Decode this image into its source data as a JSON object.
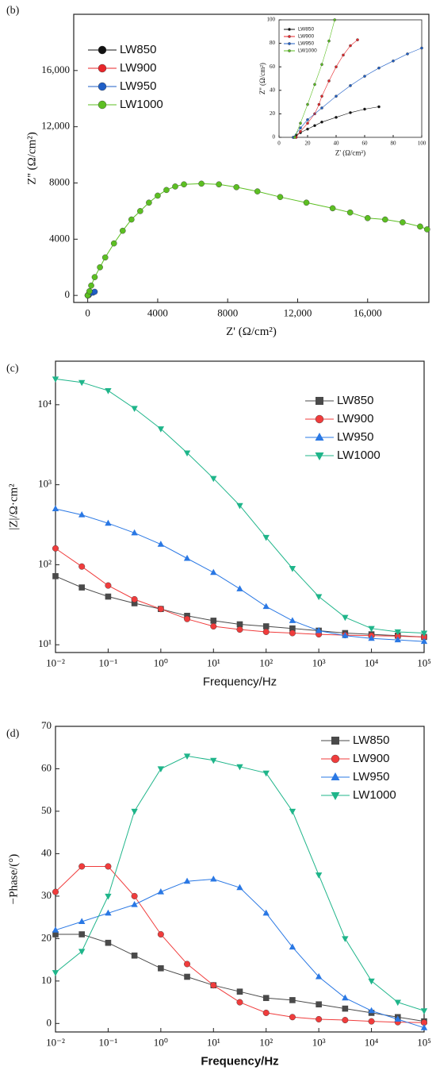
{
  "chart_data": [
    {
      "type": "line",
      "panel": "(b)",
      "xlabel": "Z' (Ω/cm²)",
      "ylabel": "Z'' (Ω/cm²)",
      "xscale": "linear",
      "legend": "upper left",
      "xlim": [
        -800,
        19500
      ],
      "ylim": [
        -500,
        20000
      ],
      "xticks": [
        0,
        4000,
        8000,
        {
          "value": 12000,
          "label": "12,000"
        },
        {
          "value": 16000,
          "label": "16,000"
        }
      ],
      "yticks": [
        0,
        4000,
        8000,
        {
          "value": 12000,
          "label": "12,000"
        },
        {
          "value": 16000,
          "label": "16,000"
        }
      ],
      "series": [
        {
          "name": "LW850",
          "color": "#111111",
          "marker": "circle",
          "x": [
            0,
            30,
            60
          ],
          "values": [
            0,
            10,
            25
          ]
        },
        {
          "name": "LW900",
          "color": "#e8262a",
          "marker": "circle",
          "x": [
            0,
            30,
            55
          ],
          "values": [
            0,
            40,
            85
          ]
        },
        {
          "name": "LW950",
          "color": "#1f5fc7",
          "marker": "circle",
          "x": [
            0,
            100,
            300,
            400
          ],
          "values": [
            0,
            100,
            200,
            260
          ]
        },
        {
          "name": "LW1000",
          "color": "#5cbf22",
          "marker": "circle",
          "x": [
            0,
            100,
            200,
            400,
            700,
            1000,
            1500,
            2000,
            2500,
            3000,
            3500,
            4000,
            4500,
            5000,
            5500,
            6500,
            7500,
            8500,
            9700,
            11000,
            12500,
            14000,
            15000,
            16000,
            17000,
            18000,
            19000,
            19400
          ],
          "values": [
            0,
            300,
            700,
            1300,
            2000,
            2700,
            3700,
            4600,
            5400,
            6000,
            6600,
            7100,
            7500,
            7750,
            7900,
            7950,
            7900,
            7700,
            7400,
            7000,
            6600,
            6200,
            5900,
            5500,
            5400,
            5200,
            4900,
            4700
          ]
        }
      ]
    },
    {
      "type": "line",
      "xlabel": "Z' (Ω/cm²)",
      "ylabel": "Z'' (Ω/cm²)",
      "xscale": "linear",
      "legend": "upper left",
      "xlim": [
        0,
        100
      ],
      "ylim": [
        0,
        100
      ],
      "xticks": [
        0,
        20,
        40,
        60,
        80,
        100
      ],
      "yticks": [
        0,
        20,
        40,
        60,
        80,
        100
      ],
      "series": [
        {
          "name": "LW850",
          "color": "#111111",
          "marker": "circle",
          "x": [
            10,
            12,
            15,
            20,
            25,
            30,
            40,
            50,
            60,
            70
          ],
          "values": [
            0,
            2,
            4,
            7,
            10,
            13,
            17,
            21,
            24,
            26
          ]
        },
        {
          "name": "LW900",
          "color": "#e8262a",
          "marker": "circle",
          "x": [
            12,
            15,
            20,
            25,
            28,
            30,
            35,
            40,
            45,
            50,
            55
          ],
          "values": [
            0,
            5,
            12,
            20,
            28,
            35,
            48,
            60,
            70,
            78,
            83
          ]
        },
        {
          "name": "LW950",
          "color": "#1f5fc7",
          "marker": "circle",
          "x": [
            10,
            15,
            20,
            30,
            40,
            50,
            60,
            70,
            80,
            90,
            100
          ],
          "values": [
            0,
            8,
            15,
            25,
            35,
            44,
            52,
            59,
            65,
            71,
            76
          ]
        },
        {
          "name": "LW1000",
          "color": "#5cbf22",
          "marker": "circle",
          "x": [
            11,
            15,
            20,
            25,
            30,
            35,
            39
          ],
          "values": [
            0,
            12,
            28,
            45,
            62,
            82,
            100
          ]
        }
      ]
    },
    {
      "type": "line",
      "panel": "(c)",
      "xlabel": "Frequency/Hz",
      "ylabel": "|Z|/Ω·cm²",
      "xscale": "log",
      "yscale": "log",
      "legend": "upper right",
      "xlim": [
        0.01,
        100000
      ],
      "ylim": [
        8,
        35000
      ],
      "xticks": [
        {
          "value": 0.01,
          "label": "10⁻²"
        },
        {
          "value": 0.1,
          "label": "10⁻¹"
        },
        {
          "value": 1,
          "label": "10⁰"
        },
        {
          "value": 10,
          "label": "10¹"
        },
        {
          "value": 100,
          "label": "10²"
        },
        {
          "value": 1000,
          "label": "10³"
        },
        {
          "value": 10000,
          "label": "10⁴"
        },
        {
          "value": 100000,
          "label": "10⁵"
        }
      ],
      "yticks": [
        {
          "value": 10,
          "label": "10¹"
        },
        {
          "value": 100,
          "label": "10²"
        },
        {
          "value": 1000,
          "label": "10³"
        },
        {
          "value": 10000,
          "label": "10⁴"
        }
      ],
      "x": [
        0.01,
        0.0316,
        0.1,
        0.316,
        1,
        3.16,
        10,
        31.6,
        100,
        316,
        1000,
        3162,
        10000,
        31623,
        100000
      ],
      "series": [
        {
          "name": "LW850",
          "color": "#4a4a4a",
          "marker": "square",
          "values": [
            72,
            52,
            40,
            33,
            28,
            23,
            20,
            18,
            17,
            16,
            15,
            14,
            13.5,
            13,
            12.5
          ]
        },
        {
          "name": "LW900",
          "color": "#f03c3c",
          "marker": "circle",
          "values": [
            160,
            95,
            55,
            37,
            28,
            21,
            17,
            15.5,
            14.5,
            14,
            13.5,
            13.2,
            13,
            12.8,
            12.5
          ]
        },
        {
          "name": "LW950",
          "color": "#2a78e4",
          "marker": "triangle",
          "values": [
            500,
            420,
            330,
            250,
            180,
            120,
            80,
            50,
            30,
            20,
            15,
            13,
            12,
            11.5,
            11
          ]
        },
        {
          "name": "LW1000",
          "color": "#1fb58a",
          "marker": "triangle-down",
          "values": [
            21000,
            19000,
            15000,
            9000,
            5000,
            2500,
            1200,
            550,
            220,
            90,
            40,
            22,
            16,
            14.5,
            14
          ]
        }
      ]
    },
    {
      "type": "line",
      "panel": "(d)",
      "xlabel": "Frequency/Hz",
      "ylabel": "−Phase/(°)",
      "xscale": "log",
      "legend": "upper right",
      "xlim": [
        0.01,
        100000
      ],
      "ylim": [
        -2,
        70
      ],
      "xticks": [
        {
          "value": 0.01,
          "label": "10⁻²"
        },
        {
          "value": 0.1,
          "label": "10⁻¹"
        },
        {
          "value": 1,
          "label": "10⁰"
        },
        {
          "value": 10,
          "label": "10¹"
        },
        {
          "value": 100,
          "label": "10²"
        },
        {
          "value": 1000,
          "label": "10³"
        },
        {
          "value": 10000,
          "label": "10⁴"
        },
        {
          "value": 100000,
          "label": "10⁵"
        }
      ],
      "yticks": [
        0,
        10,
        20,
        30,
        40,
        50,
        60,
        70
      ],
      "x": [
        0.01,
        0.0316,
        0.1,
        0.316,
        1,
        3.16,
        10,
        31.6,
        100,
        316,
        1000,
        3162,
        10000,
        31623,
        100000
      ],
      "series": [
        {
          "name": "LW850",
          "color": "#4a4a4a",
          "marker": "square",
          "values": [
            21,
            21,
            19,
            16,
            13,
            11,
            9,
            7.5,
            6,
            5.5,
            4.5,
            3.5,
            2.5,
            1.5,
            0.5
          ]
        },
        {
          "name": "LW900",
          "color": "#f03c3c",
          "marker": "circle",
          "values": [
            31,
            37,
            37,
            30,
            21,
            14,
            9,
            5,
            2.5,
            1.5,
            1,
            0.8,
            0.5,
            0.3,
            0.2
          ]
        },
        {
          "name": "LW950",
          "color": "#2a78e4",
          "marker": "triangle",
          "values": [
            22,
            24,
            26,
            28,
            31,
            33.5,
            34,
            32,
            26,
            18,
            11,
            6,
            3,
            1,
            -1
          ]
        },
        {
          "name": "LW1000",
          "color": "#1fb58a",
          "marker": "triangle-down",
          "values": [
            12,
            17,
            30,
            50,
            60,
            63,
            62,
            60.5,
            59,
            50,
            35,
            20,
            10,
            5,
            3
          ]
        }
      ]
    }
  ]
}
